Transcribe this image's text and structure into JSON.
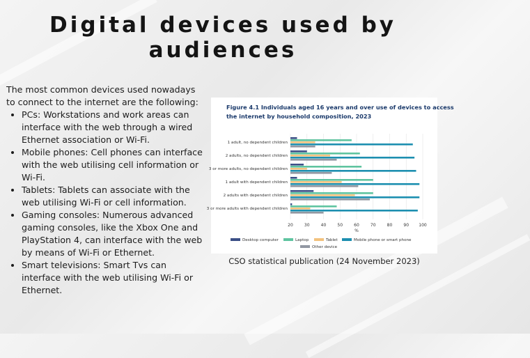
{
  "title": "Digital devices used by audiences",
  "intro": "The most common devices used nowadays to connect to the internet are the following:",
  "bullets": [
    "PCs: Workstations and work areas can interface with the web through a wired Ethernet association or Wi-Fi.",
    "Mobile phones: Cell phones can interface with the web utilising cell information or Wi-Fi.",
    "Tablets: Tablets can associate with the web utilising Wi-Fi or cell information.",
    "Gaming consoles: Numerous advanced gaming consoles, like the Xbox One and PlayStation 4, can interface with the web by means of Wi-Fi or Ethernet.",
    "Smart televisions: Smart Tvs can interface with the web utilising Wi-Fi or Ethernet."
  ],
  "caption": "CSO statistical publication (24 November 2023)",
  "chart_data": {
    "type": "bar",
    "orientation": "horizontal",
    "title_line1": "Figure 4.1 Individuals aged 16 years and over use of devices to access",
    "title_line2": "the internet by household composition, 2023",
    "xlabel": "%",
    "xlim": [
      20,
      100
    ],
    "xticks": [
      "20",
      "30",
      "40",
      "50",
      "60",
      "70",
      "80",
      "90",
      "100"
    ],
    "grid": true,
    "legend_position": "bottom",
    "categories": [
      "1 adult, no dependent children",
      "2 adults, no dependent children",
      "3 or more adults, no dependent children",
      "1 adult with dependent children",
      "2 adults with dependent children",
      "3 or more adults with dependent children"
    ],
    "series": [
      {
        "name": "Desktop computer",
        "color": "#3b4f86",
        "values": [
          24,
          30,
          28,
          24,
          34,
          21
        ]
      },
      {
        "name": "Laptop",
        "color": "#5fc4a0",
        "values": [
          57,
          62,
          63,
          70,
          70,
          48
        ]
      },
      {
        "name": "Tablet",
        "color": "#f2c27e",
        "values": [
          35,
          44,
          30,
          51,
          59,
          32
        ]
      },
      {
        "name": "Mobile phone or smart phone",
        "color": "#1d8fb0",
        "values": [
          94,
          95,
          96,
          98,
          98,
          97
        ]
      },
      {
        "name": "Other device",
        "color": "#9298a2",
        "values": [
          35,
          48,
          45,
          61,
          68,
          40
        ]
      }
    ]
  }
}
